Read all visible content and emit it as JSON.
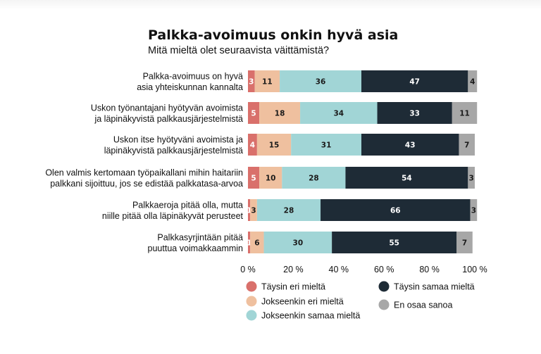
{
  "chart_data": {
    "type": "bar",
    "orientation": "horizontal",
    "stacked": true,
    "title": "Palkka-avoimuus onkin hyvä asia",
    "subtitle": "Mitä mieltä olet seuraavista väittämistä?",
    "categories": [
      [
        "Palkka-avoimuus on hyvä",
        "asia yhteiskunnan kannalta"
      ],
      [
        "Uskon työnantajani hyötyvän avoimista",
        "ja läpinäkyvistä palkkausjärjestelmistä"
      ],
      [
        "Uskon itse hyötyväni avoimista ja",
        "läpinäkyvistä palkkausjärjestelmistä"
      ],
      [
        "Olen valmis kertomaan työpaikallani mihin haitariin",
        "palkkani sijoittuu, jos se edistää palkkatasa-arvoa"
      ],
      [
        "Palkkaeroja pitää olla, mutta",
        "niille pitää olla läpinäkyvät perusteet"
      ],
      [
        "Palkkasyrjintään pitää",
        "puuttua voimakkaammin"
      ]
    ],
    "series": [
      {
        "name": "Täysin eri mieltä",
        "color": "#d9706b",
        "label_color": "#ffffff",
        "values": [
          3,
          5,
          4,
          5,
          1,
          1
        ]
      },
      {
        "name": "Jokseenkin eri mieltä",
        "color": "#efc09f",
        "label_color": "#1b1b1b",
        "values": [
          11,
          18,
          15,
          10,
          3,
          6
        ]
      },
      {
        "name": "Jokseenkin samaa mieltä",
        "color": "#a1d5d6",
        "label_color": "#1b1b1b",
        "values": [
          36,
          34,
          31,
          28,
          28,
          30
        ]
      },
      {
        "name": "Täysin samaa mieltä",
        "color": "#1e2b36",
        "label_color": "#ffffff",
        "values": [
          47,
          33,
          43,
          54,
          66,
          55
        ]
      },
      {
        "name": "En osaa sanoa",
        "color": "#a7a7a7",
        "label_color": "#1b1b1b",
        "values": [
          4,
          11,
          7,
          3,
          3,
          7
        ]
      }
    ],
    "xlim": [
      0,
      100
    ],
    "xticks": [
      "0 %",
      "20 %",
      "40 %",
      "60 %",
      "80 %",
      "100 %"
    ],
    "xtick_values": [
      0,
      20,
      40,
      60,
      80,
      100
    ],
    "grid": false,
    "legend_position": "bottom",
    "legend_order": [
      0,
      3,
      1,
      4,
      2
    ]
  }
}
